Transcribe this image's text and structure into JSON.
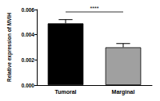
{
  "chart_data": {
    "type": "bar",
    "y_label": "Relative expression of MVIH",
    "categories": [
      "Tumoral",
      "Marginal"
    ],
    "values": [
      0.0049,
      0.003
    ],
    "errors": [
      0.0003,
      0.0003
    ],
    "colors": [
      "#000000",
      "#a0a0a0"
    ],
    "ylim": [
      0,
      0.006
    ],
    "yticks": [
      {
        "value": 0,
        "label": "0.000"
      },
      {
        "value": 0.002,
        "label": "0.002"
      },
      {
        "value": 0.004,
        "label": "0.004"
      },
      {
        "value": 0.006,
        "label": "0.006"
      }
    ],
    "annotation": "****",
    "grid": false
  }
}
